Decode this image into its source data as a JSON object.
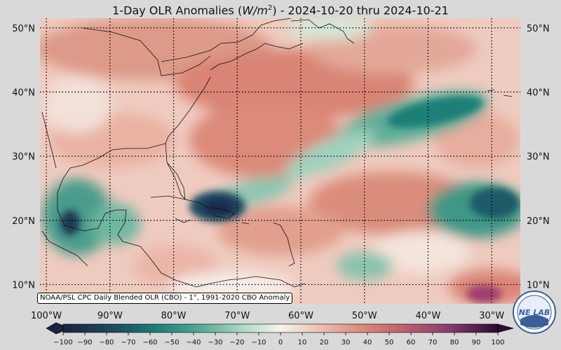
{
  "title": {
    "prefix": "1-Day OLR Anomalies (",
    "unit_base": "W/m",
    "unit_exp": "2",
    "suffix": ") - 2024-10-20 thru 2024-10-21"
  },
  "map": {
    "lat_range": [
      7,
      51.5
    ],
    "lon_range": [
      -101,
      -25.5
    ],
    "lat_labels": [
      {
        "lat": 50,
        "text": "50°N"
      },
      {
        "lat": 40,
        "text": "40°N"
      },
      {
        "lat": 30,
        "text": "30°N"
      },
      {
        "lat": 20,
        "text": "20°N"
      },
      {
        "lat": 10,
        "text": "10°N"
      }
    ],
    "lon_labels": [
      {
        "lon": -100,
        "text": "100°W"
      },
      {
        "lon": -90,
        "text": "90°W"
      },
      {
        "lon": -80,
        "text": "80°W"
      },
      {
        "lon": -70,
        "text": "70°W"
      },
      {
        "lon": -60,
        "text": "60°W"
      },
      {
        "lon": -50,
        "text": "50°W"
      },
      {
        "lon": -40,
        "text": "40°W"
      },
      {
        "lon": -30,
        "text": "30°W"
      }
    ],
    "gridlines": true
  },
  "colorbar": {
    "ticks": [
      "−100",
      "−90",
      "−80",
      "−70",
      "−60",
      "−50",
      "−40",
      "−30",
      "−20",
      "−10",
      "0",
      "10",
      "20",
      "30",
      "40",
      "50",
      "60",
      "70",
      "80",
      "90",
      "100"
    ],
    "range": [
      -100,
      100
    ],
    "colors": {
      "neg_strong": "#1c2a4e",
      "neg_mid": "#1f7f78",
      "neg_light": "#9fd1bd",
      "neutral": "#f7f2ee",
      "pos_light": "#ecbfb1",
      "pos_mid": "#d98474",
      "pos_strong": "#9c3e6e",
      "pos_max": "#3d0c3a"
    }
  },
  "source_label": "NOAA/PSL CPC Daily Blended OLR (CBO) - 1°, 1991-2020 CBO Anomaly",
  "logo": {
    "text": "NE LAB",
    "icon": "noaa-psl-logo-icon"
  }
}
